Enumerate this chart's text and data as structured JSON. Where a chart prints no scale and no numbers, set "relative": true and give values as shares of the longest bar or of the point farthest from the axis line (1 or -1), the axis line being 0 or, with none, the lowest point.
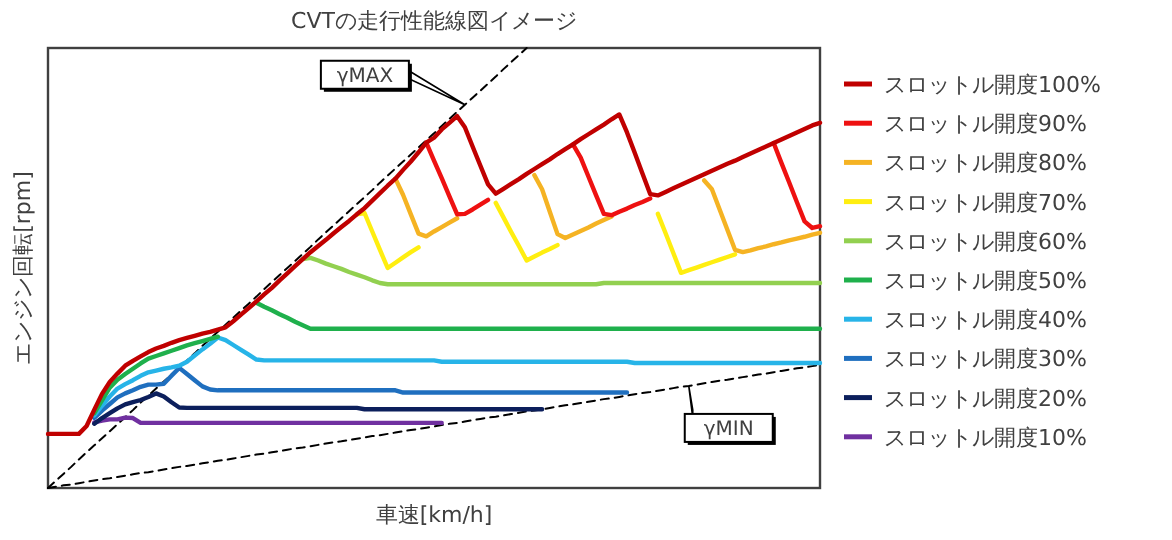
{
  "chart_data": {
    "type": "line",
    "title": "CVTの走行性能線図イメージ",
    "xlabel": "車速[km/h]",
    "ylabel": "エンジン回転[rpm]",
    "relative": true,
    "legend": "right",
    "annotations": [
      "γMAX",
      "γMIN"
    ],
    "categories": [
      null,
      null,
      null,
      null,
      null,
      null,
      null,
      null,
      null,
      null,
      null,
      null,
      null,
      null,
      null,
      null,
      null,
      null,
      null,
      null,
      null,
      null,
      null,
      null,
      null,
      null,
      null,
      null,
      null,
      null,
      null,
      null,
      null,
      null,
      null,
      null,
      null,
      null,
      null,
      null,
      null,
      null,
      null,
      null,
      null,
      null,
      null,
      null,
      null,
      null,
      null,
      null,
      null,
      null,
      null,
      null,
      null,
      null,
      null,
      null,
      null,
      null,
      null,
      null,
      null,
      null,
      null,
      null,
      null,
      null,
      null,
      null,
      null,
      null,
      null,
      null,
      null,
      null,
      null,
      null,
      null,
      null,
      null,
      null,
      null,
      null,
      null,
      null,
      null,
      null,
      null,
      null,
      null,
      null,
      null,
      null,
      null,
      null,
      null,
      null,
      null
    ],
    "series": [
      {
        "name": "スロットル開度100%",
        "color": "#c00000",
        "values": [
          0.123,
          0.123,
          0.123,
          0.123,
          0.123,
          0.141,
          0.178,
          0.214,
          0.241,
          0.26,
          0.278,
          0.289,
          0.299,
          0.309,
          0.317,
          0.323,
          0.33,
          0.336,
          0.341,
          0.346,
          0.351,
          0.355,
          0.36,
          0.365,
          0.379,
          0.394,
          0.409,
          0.424,
          0.44,
          0.455,
          0.472,
          0.488,
          0.504,
          0.52,
          0.536,
          0.55,
          0.564,
          0.579,
          0.593,
          0.607,
          0.622,
          0.636,
          0.653,
          0.67,
          0.687,
          0.703,
          0.723,
          0.742,
          0.763,
          0.785,
          0.796,
          0.815,
          0.83,
          0.845,
          0.82,
          0.776,
          0.733,
          0.69,
          0.669,
          0.68,
          0.691,
          0.702,
          0.714,
          0.725,
          0.736,
          0.747,
          0.759,
          0.77,
          0.781,
          0.793,
          0.804,
          0.815,
          0.826,
          0.838,
          0.849,
          0.808,
          0.762,
          0.715,
          0.668,
          0.665,
          0.673,
          0.681,
          0.689,
          0.697,
          0.705,
          0.713,
          0.721,
          0.729,
          0.737,
          0.744,
          0.752,
          0.76,
          0.768,
          0.776,
          0.784,
          0.792,
          0.8,
          0.808,
          0.816,
          0.824,
          0.83
        ]
      },
      {
        "name": "スロットル開度90%",
        "color": "#ee1111",
        "values": [
          null,
          null,
          null,
          null,
          null,
          null,
          null,
          null,
          null,
          null,
          null,
          null,
          null,
          null,
          null,
          null,
          null,
          null,
          null,
          null,
          null,
          null,
          null,
          null,
          null,
          null,
          null,
          null,
          null,
          null,
          null,
          null,
          null,
          null,
          null,
          null,
          null,
          null,
          null,
          null,
          null,
          null,
          null,
          null,
          null,
          null,
          null,
          null,
          null,
          0.785,
          0.744,
          0.704,
          0.663,
          0.622,
          0.623,
          0.633,
          0.644,
          0.655,
          null,
          null,
          null,
          null,
          null,
          null,
          null,
          null,
          null,
          null,
          0.781,
          0.751,
          0.708,
          0.665,
          0.623,
          0.62,
          0.628,
          0.635,
          0.643,
          0.65,
          0.658,
          null,
          null,
          null,
          null,
          null,
          null,
          null,
          null,
          null,
          null,
          null,
          null,
          null,
          null,
          null,
          0.784,
          0.739,
          0.695,
          0.65,
          0.606,
          0.591,
          0.595
        ]
      },
      {
        "name": "スロットル開度80%",
        "color": "#f5b323",
        "values": [
          null,
          null,
          null,
          null,
          null,
          null,
          null,
          null,
          null,
          null,
          null,
          null,
          null,
          null,
          null,
          null,
          null,
          null,
          null,
          null,
          null,
          null,
          null,
          null,
          null,
          null,
          null,
          null,
          null,
          null,
          null,
          null,
          null,
          null,
          null,
          null,
          null,
          null,
          null,
          null,
          null,
          null,
          null,
          null,
          null,
          0.703,
          0.666,
          0.622,
          0.578,
          0.572,
          0.583,
          0.593,
          0.603,
          0.613,
          null,
          null,
          null,
          null,
          null,
          null,
          null,
          null,
          null,
          0.711,
          0.679,
          0.628,
          0.577,
          0.568,
          0.576,
          0.584,
          0.592,
          0.601,
          0.609,
          0.617,
          null,
          null,
          null,
          null,
          null,
          null,
          null,
          null,
          null,
          null,
          null,
          0.699,
          0.679,
          0.633,
          0.587,
          0.541,
          0.536,
          0.54,
          0.545,
          0.549,
          0.554,
          0.558,
          0.563,
          0.567,
          0.571,
          0.576,
          0.58
        ]
      },
      {
        "name": "スロットル開度70%",
        "color": "#ffee10",
        "values": [
          null,
          null,
          null,
          null,
          null,
          null,
          null,
          null,
          null,
          null,
          null,
          null,
          null,
          null,
          null,
          null,
          null,
          null,
          null,
          null,
          null,
          null,
          null,
          null,
          null,
          null,
          null,
          null,
          null,
          null,
          null,
          null,
          null,
          null,
          null,
          null,
          null,
          null,
          null,
          null,
          0.622,
          0.625,
          0.583,
          0.541,
          0.5,
          0.512,
          0.524,
          0.536,
          0.547,
          null,
          null,
          null,
          null,
          null,
          null,
          null,
          null,
          null,
          0.648,
          0.615,
          0.582,
          0.55,
          0.517,
          0.526,
          0.535,
          0.543,
          0.552,
          null,
          null,
          null,
          null,
          null,
          null,
          null,
          null,
          null,
          null,
          null,
          null,
          0.623,
          0.579,
          0.534,
          0.489,
          0.495,
          0.501,
          0.507,
          0.513,
          0.519,
          0.525,
          0.531,
          null,
          null,
          null,
          null,
          null,
          null,
          null,
          null,
          null,
          null,
          null
        ]
      },
      {
        "name": "スロットル開度60%",
        "color": "#92d050",
        "values": [
          null,
          null,
          null,
          null,
          null,
          null,
          null,
          null,
          null,
          null,
          null,
          null,
          null,
          null,
          null,
          null,
          null,
          null,
          null,
          null,
          null,
          null,
          null,
          null,
          null,
          null,
          null,
          null,
          null,
          null,
          null,
          null,
          null,
          0.52,
          0.523,
          0.517,
          0.51,
          0.504,
          0.498,
          0.491,
          0.485,
          0.479,
          0.472,
          0.466,
          0.463,
          0.463,
          0.463,
          0.463,
          0.463,
          0.463,
          0.463,
          0.463,
          0.463,
          0.463,
          0.463,
          0.463,
          0.463,
          0.463,
          0.463,
          0.463,
          0.463,
          0.463,
          0.463,
          0.463,
          0.463,
          0.463,
          0.463,
          0.463,
          0.463,
          0.463,
          0.463,
          0.463,
          0.466,
          0.466,
          0.466,
          0.466,
          0.466,
          0.466,
          0.466,
          0.466,
          0.466,
          0.466,
          0.466,
          0.466,
          0.466,
          0.466,
          0.466,
          0.466,
          0.466,
          0.466,
          0.466,
          0.466,
          0.466,
          0.466,
          0.466,
          0.466,
          0.466,
          0.466,
          0.466,
          0.466,
          0.466
        ]
      },
      {
        "name": "スロットル開度50%",
        "color": "#1fb04c",
        "values": [
          null,
          null,
          null,
          null,
          null,
          null,
          0.17,
          0.199,
          0.228,
          0.246,
          0.259,
          0.271,
          0.283,
          0.294,
          0.3,
          0.306,
          0.312,
          0.318,
          0.324,
          0.329,
          0.334,
          0.339,
          0.344,
          null,
          null,
          null,
          null,
          0.421,
          0.412,
          0.404,
          0.395,
          0.387,
          0.378,
          0.37,
          0.362,
          0.362,
          0.362,
          0.362,
          0.362,
          0.362,
          0.362,
          0.362,
          0.362,
          0.362,
          0.362,
          0.362,
          0.362,
          0.362,
          0.362,
          0.362,
          0.362,
          0.362,
          0.362,
          0.362,
          0.362,
          0.362,
          0.362,
          0.362,
          0.362,
          0.362,
          0.362,
          0.362,
          0.362,
          0.362,
          0.362,
          0.362,
          0.362,
          0.362,
          0.362,
          0.362,
          0.362,
          0.362,
          0.362,
          0.362,
          0.362,
          0.362,
          0.362,
          0.362,
          0.362,
          0.362,
          0.362,
          0.362,
          0.362,
          0.362,
          0.362,
          0.362,
          0.362,
          0.362,
          0.362,
          0.362,
          0.362,
          0.362,
          0.362,
          0.362,
          0.362,
          0.362,
          0.362,
          0.362,
          0.362,
          0.362,
          0.362
        ]
      },
      {
        "name": "スロットル開度40%",
        "color": "#27b4e8",
        "values": [
          null,
          null,
          null,
          null,
          null,
          null,
          0.165,
          0.187,
          0.208,
          0.226,
          0.236,
          0.245,
          0.255,
          0.263,
          0.267,
          0.271,
          0.274,
          0.278,
          0.287,
          0.301,
          0.315,
          0.328,
          0.342,
          0.336,
          0.325,
          0.314,
          0.303,
          0.292,
          0.29,
          0.29,
          0.29,
          0.29,
          0.29,
          0.29,
          0.29,
          0.29,
          0.29,
          0.29,
          0.29,
          0.29,
          0.29,
          0.29,
          0.29,
          0.29,
          0.29,
          0.29,
          0.29,
          0.29,
          0.29,
          0.29,
          0.29,
          0.287,
          0.287,
          0.287,
          0.287,
          0.287,
          0.287,
          0.287,
          0.287,
          0.287,
          0.287,
          0.287,
          0.287,
          0.287,
          0.287,
          0.287,
          0.287,
          0.287,
          0.287,
          0.287,
          0.287,
          0.287,
          0.287,
          0.287,
          0.287,
          0.287,
          0.284,
          0.284,
          0.284,
          0.284,
          0.284,
          0.284,
          0.284,
          0.284,
          0.284,
          0.284,
          0.284,
          0.284,
          0.284,
          0.284,
          0.284,
          0.284,
          0.284,
          0.284,
          0.284,
          0.284,
          0.284,
          0.284,
          0.284,
          0.284,
          0.284
        ]
      },
      {
        "name": "スロットル開度30%",
        "color": "#1f6fbf",
        "values": [
          null,
          null,
          null,
          null,
          null,
          null,
          0.159,
          0.176,
          0.191,
          0.206,
          0.215,
          0.222,
          0.23,
          0.235,
          0.235,
          0.237,
          0.255,
          0.273,
          0.259,
          0.245,
          0.231,
          0.224,
          0.222,
          0.222,
          0.222,
          0.222,
          0.222,
          0.222,
          0.222,
          0.222,
          0.222,
          0.222,
          0.222,
          0.222,
          0.222,
          0.222,
          0.222,
          0.222,
          0.222,
          0.222,
          0.222,
          0.222,
          0.222,
          0.222,
          0.222,
          0.222,
          0.217,
          0.217,
          0.217,
          0.217,
          0.217,
          0.217,
          0.217,
          0.217,
          0.217,
          0.217,
          0.217,
          0.217,
          0.217,
          0.217,
          0.217,
          0.217,
          0.217,
          0.217,
          0.217,
          0.217,
          0.217,
          0.217,
          0.217,
          0.217,
          0.217,
          0.217,
          0.217,
          0.217,
          0.217,
          0.217,
          null,
          null,
          null,
          null,
          null,
          null,
          null,
          null,
          null,
          null,
          null,
          null,
          null,
          null,
          null,
          null,
          null,
          null,
          null,
          null,
          null,
          null,
          null,
          null,
          null
        ]
      },
      {
        "name": "スロットル開度20%",
        "color": "#0c1f5c",
        "values": [
          null,
          null,
          null,
          null,
          null,
          null,
          0.146,
          0.159,
          0.17,
          0.181,
          0.19,
          0.195,
          0.2,
          0.207,
          0.215,
          0.208,
          0.195,
          0.183,
          0.182,
          0.182,
          0.182,
          0.182,
          0.182,
          0.182,
          0.182,
          0.182,
          0.182,
          0.182,
          0.182,
          0.182,
          0.182,
          0.182,
          0.182,
          0.182,
          0.182,
          0.182,
          0.182,
          0.182,
          0.182,
          0.182,
          0.182,
          0.179,
          0.179,
          0.179,
          0.179,
          0.179,
          0.179,
          0.179,
          0.179,
          0.179,
          0.179,
          0.179,
          0.179,
          0.179,
          0.179,
          0.179,
          0.179,
          0.179,
          0.179,
          0.179,
          0.179,
          0.179,
          0.179,
          0.179,
          0.179,
          null,
          null,
          null,
          null,
          null,
          null,
          null,
          null,
          null,
          null,
          null,
          null,
          null,
          null,
          null,
          null,
          null,
          null,
          null,
          null,
          null,
          null,
          null,
          null,
          null,
          null,
          null,
          null,
          null,
          null,
          null,
          null,
          null,
          null,
          null,
          null
        ]
      },
      {
        "name": "スロットル開度10%",
        "color": "#7030a0",
        "values": [
          null,
          null,
          null,
          null,
          null,
          null,
          0.149,
          0.153,
          0.156,
          0.156,
          0.16,
          0.159,
          0.148,
          0.148,
          0.148,
          0.148,
          0.148,
          0.148,
          0.148,
          0.148,
          0.148,
          0.148,
          0.148,
          0.148,
          0.148,
          0.148,
          0.148,
          0.148,
          0.148,
          0.148,
          0.148,
          0.148,
          0.148,
          0.148,
          0.148,
          0.148,
          0.148,
          0.148,
          0.148,
          0.148,
          0.148,
          0.148,
          0.148,
          0.148,
          0.148,
          0.148,
          0.148,
          0.148,
          0.148,
          0.148,
          0.148,
          0.148,
          null,
          null,
          null,
          null,
          null,
          null,
          null,
          null,
          null,
          null,
          null,
          null,
          null,
          null,
          null,
          null,
          null,
          null,
          null,
          null,
          null,
          null,
          null,
          null,
          null,
          null,
          null,
          null,
          null,
          null,
          null,
          null,
          null,
          null,
          null,
          null,
          null,
          null,
          null,
          null,
          null,
          null,
          null,
          null,
          null,
          null,
          null,
          null,
          null
        ]
      },
      {
        "color": "#000000",
        "line_style": "dashed",
        "values": [
          0,
          0.016,
          0.032,
          0.048,
          0.065,
          0.081,
          0.097,
          0.113,
          0.129,
          0.145,
          0.161,
          0.177,
          0.194,
          0.21,
          0.226,
          0.242,
          0.258,
          0.274,
          0.29,
          0.306,
          0.323,
          0.339,
          0.355,
          0.371,
          0.387,
          0.403,
          0.419,
          0.435,
          0.452,
          0.468,
          0.484,
          0.5,
          0.516,
          0.532,
          0.548,
          0.565,
          0.581,
          0.597,
          0.613,
          0.629,
          0.645,
          0.661,
          0.677,
          0.694,
          0.71,
          0.726,
          0.742,
          0.758,
          0.774,
          0.79,
          0.806,
          0.823,
          0.839,
          0.855,
          0.871,
          0.887,
          0.903,
          0.919,
          0.935,
          0.952,
          0.968,
          0.984,
          1,
          null,
          null,
          null,
          null,
          null,
          null,
          null,
          null,
          null,
          null,
          null,
          null,
          null,
          null,
          null,
          null,
          null,
          null,
          null,
          null,
          null,
          null,
          null,
          null,
          null,
          null,
          null,
          null,
          null,
          null,
          null,
          null,
          null,
          null,
          null,
          null,
          null,
          null
        ]
      },
      {
        "color": "#000000",
        "line_style": "dashed",
        "values": [
          0,
          0.003,
          0.006,
          0.008,
          0.011,
          0.014,
          0.017,
          0.02,
          0.022,
          0.025,
          0.028,
          0.031,
          0.034,
          0.036,
          0.039,
          0.042,
          0.045,
          0.048,
          0.05,
          0.053,
          0.056,
          0.059,
          0.062,
          0.064,
          0.067,
          0.07,
          0.073,
          0.076,
          0.078,
          0.081,
          0.084,
          0.087,
          0.09,
          0.092,
          0.095,
          0.098,
          0.101,
          0.104,
          0.106,
          0.109,
          0.112,
          0.115,
          0.118,
          0.12,
          0.123,
          0.126,
          0.129,
          0.132,
          0.134,
          0.137,
          0.14,
          0.143,
          0.146,
          0.148,
          0.151,
          0.154,
          0.157,
          0.16,
          0.162,
          0.165,
          0.168,
          0.171,
          0.174,
          0.176,
          0.179,
          0.182,
          0.185,
          0.188,
          0.19,
          0.193,
          0.196,
          0.199,
          0.202,
          0.204,
          0.207,
          0.21,
          0.213,
          0.216,
          0.218,
          0.221,
          0.224,
          0.227,
          0.23,
          0.232,
          0.235,
          0.238,
          0.241,
          0.244,
          0.246,
          0.249,
          0.252,
          0.255,
          0.258,
          0.26,
          0.263,
          0.266,
          0.269,
          0.272,
          0.274,
          0.277,
          0.28
        ]
      }
    ]
  }
}
